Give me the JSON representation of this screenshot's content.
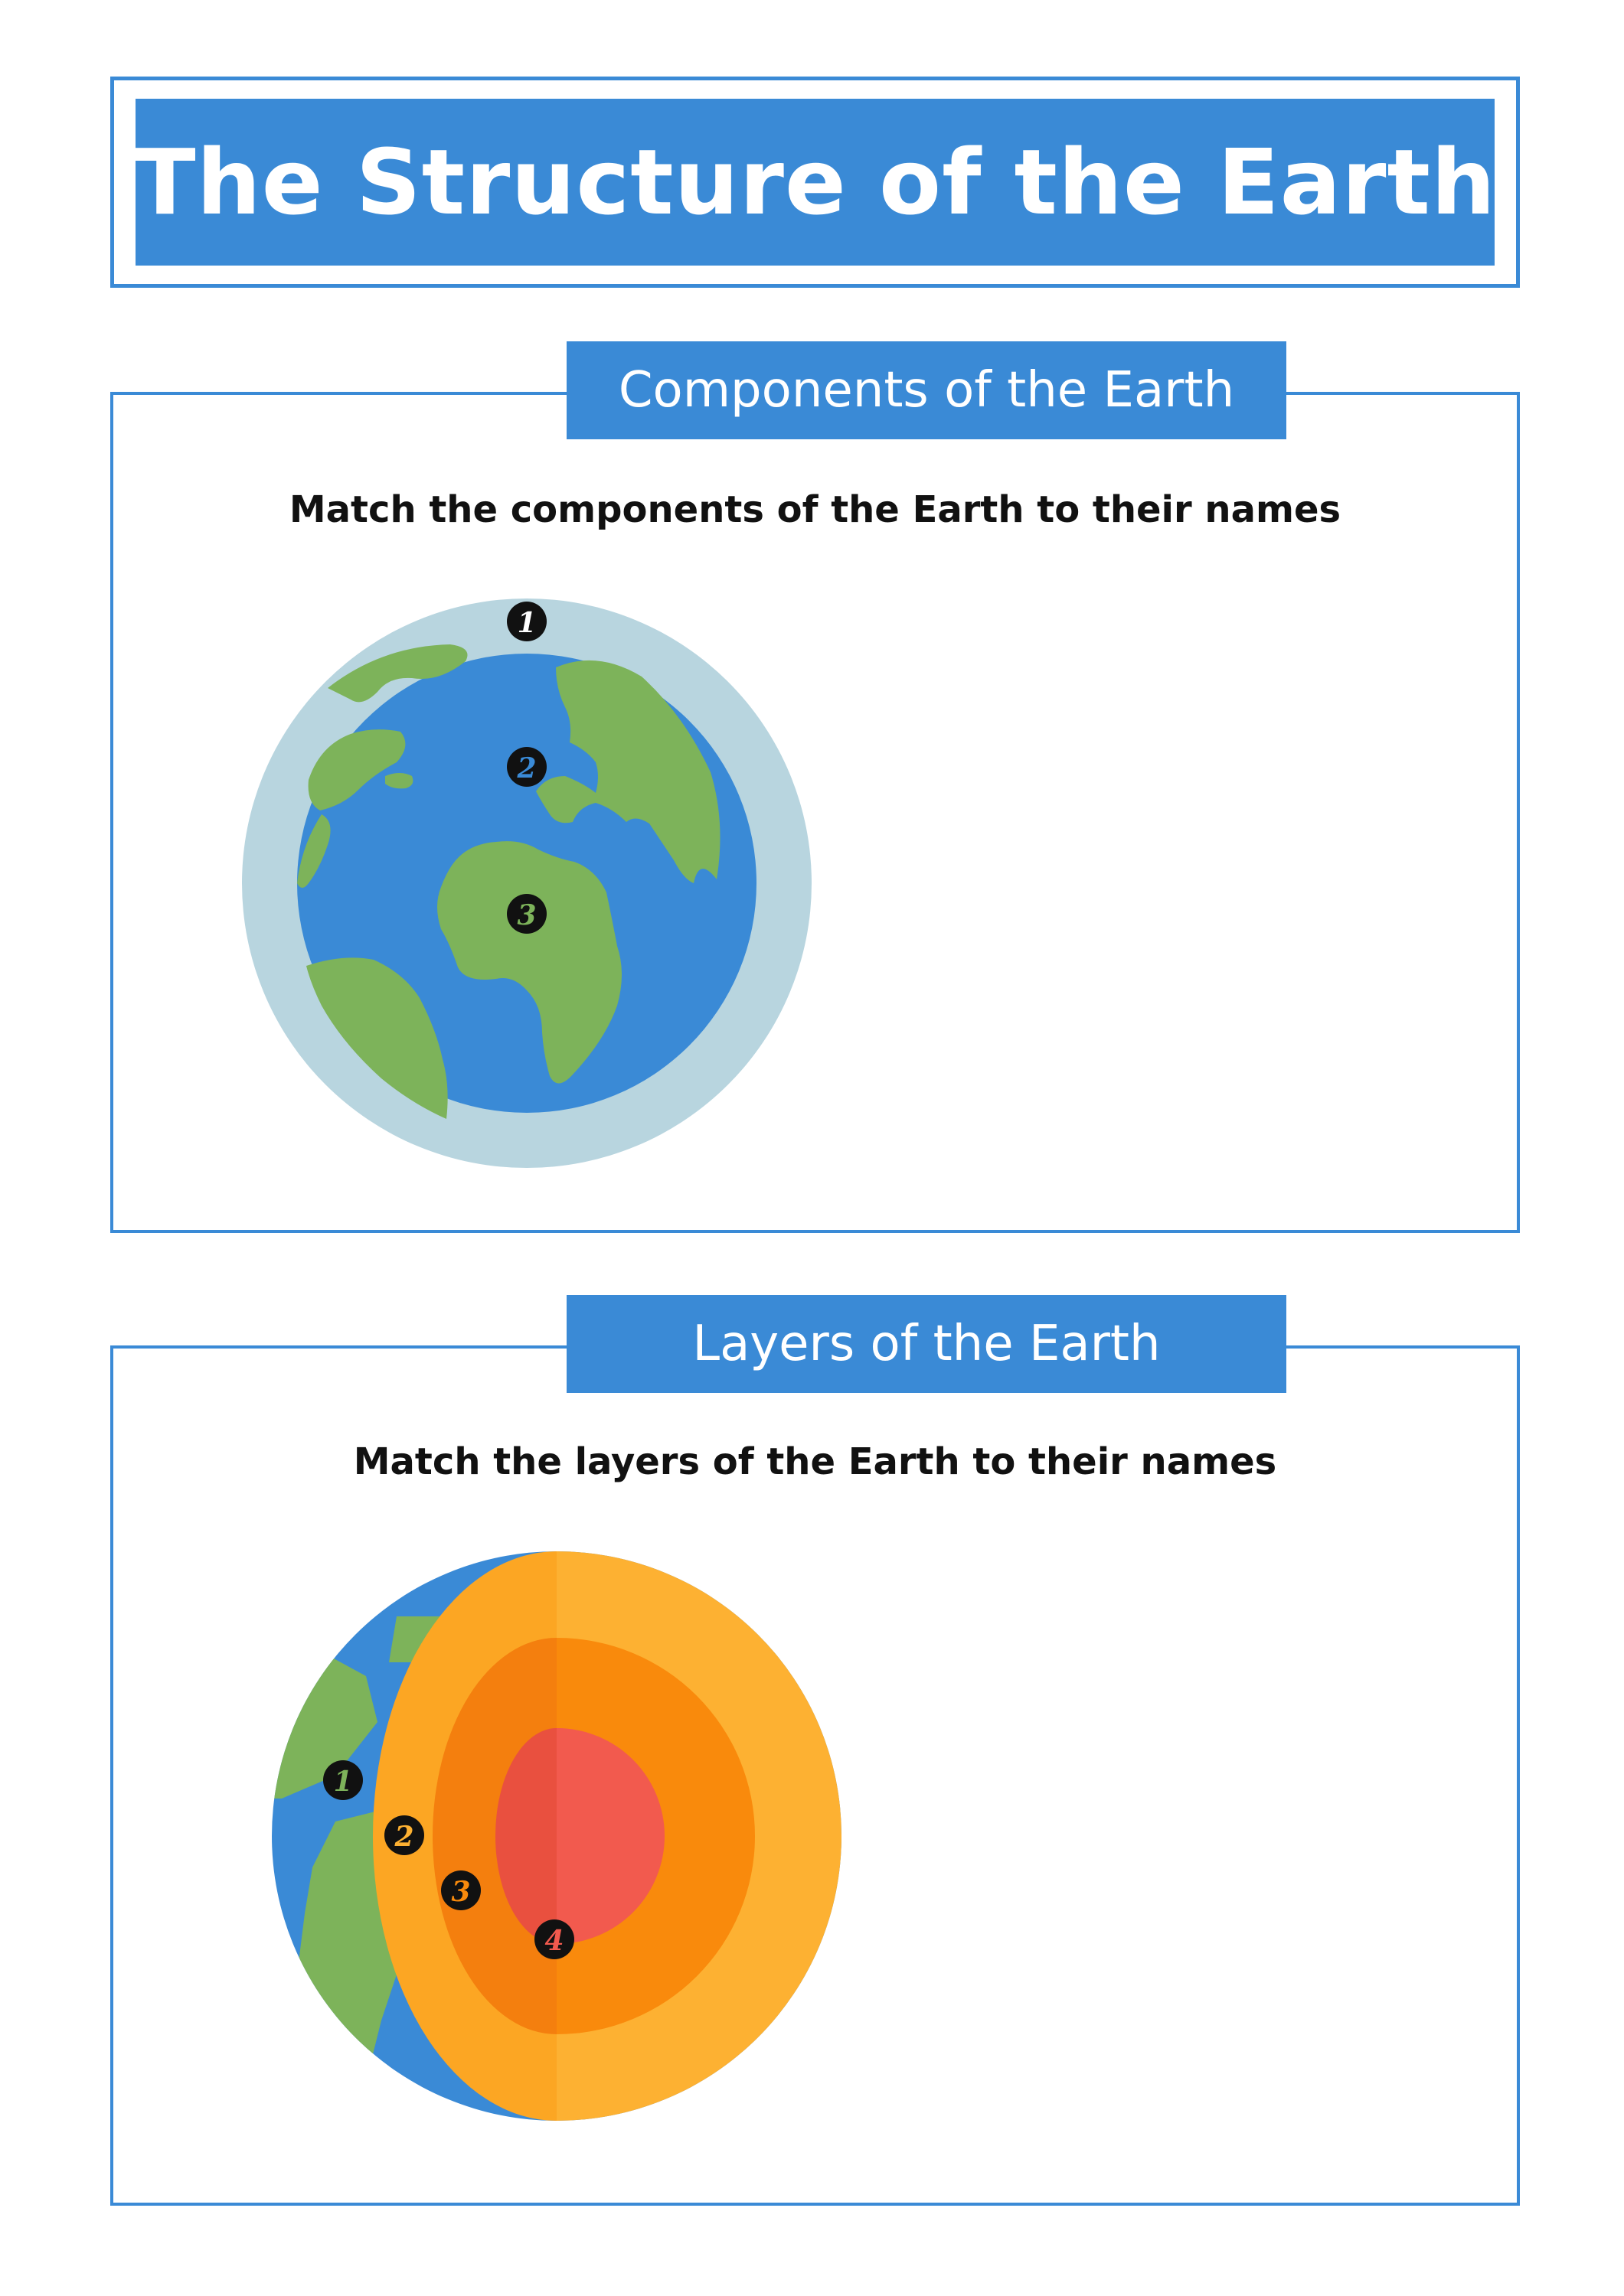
{
  "title": "The Structure of the Earth",
  "sections": [
    {
      "heading": "Components of the Earth",
      "instruction": "Match the components of the Earth to their names",
      "markers": [
        "1",
        "2",
        "3"
      ]
    },
    {
      "heading": "Layers of the Earth",
      "instruction": "Match the layers of the Earth to their names",
      "markers": [
        "1",
        "2",
        "3",
        "4"
      ]
    }
  ],
  "colors": {
    "accent": "#3a8ad6",
    "ocean": "#3a8ad6",
    "land": "#7db35a",
    "atmosphere": "#b8d5df",
    "crust": "#fdb132",
    "mantle": "#f98a0c",
    "outer_core": "#f06a3f",
    "inner_core": "#f25a4e"
  }
}
